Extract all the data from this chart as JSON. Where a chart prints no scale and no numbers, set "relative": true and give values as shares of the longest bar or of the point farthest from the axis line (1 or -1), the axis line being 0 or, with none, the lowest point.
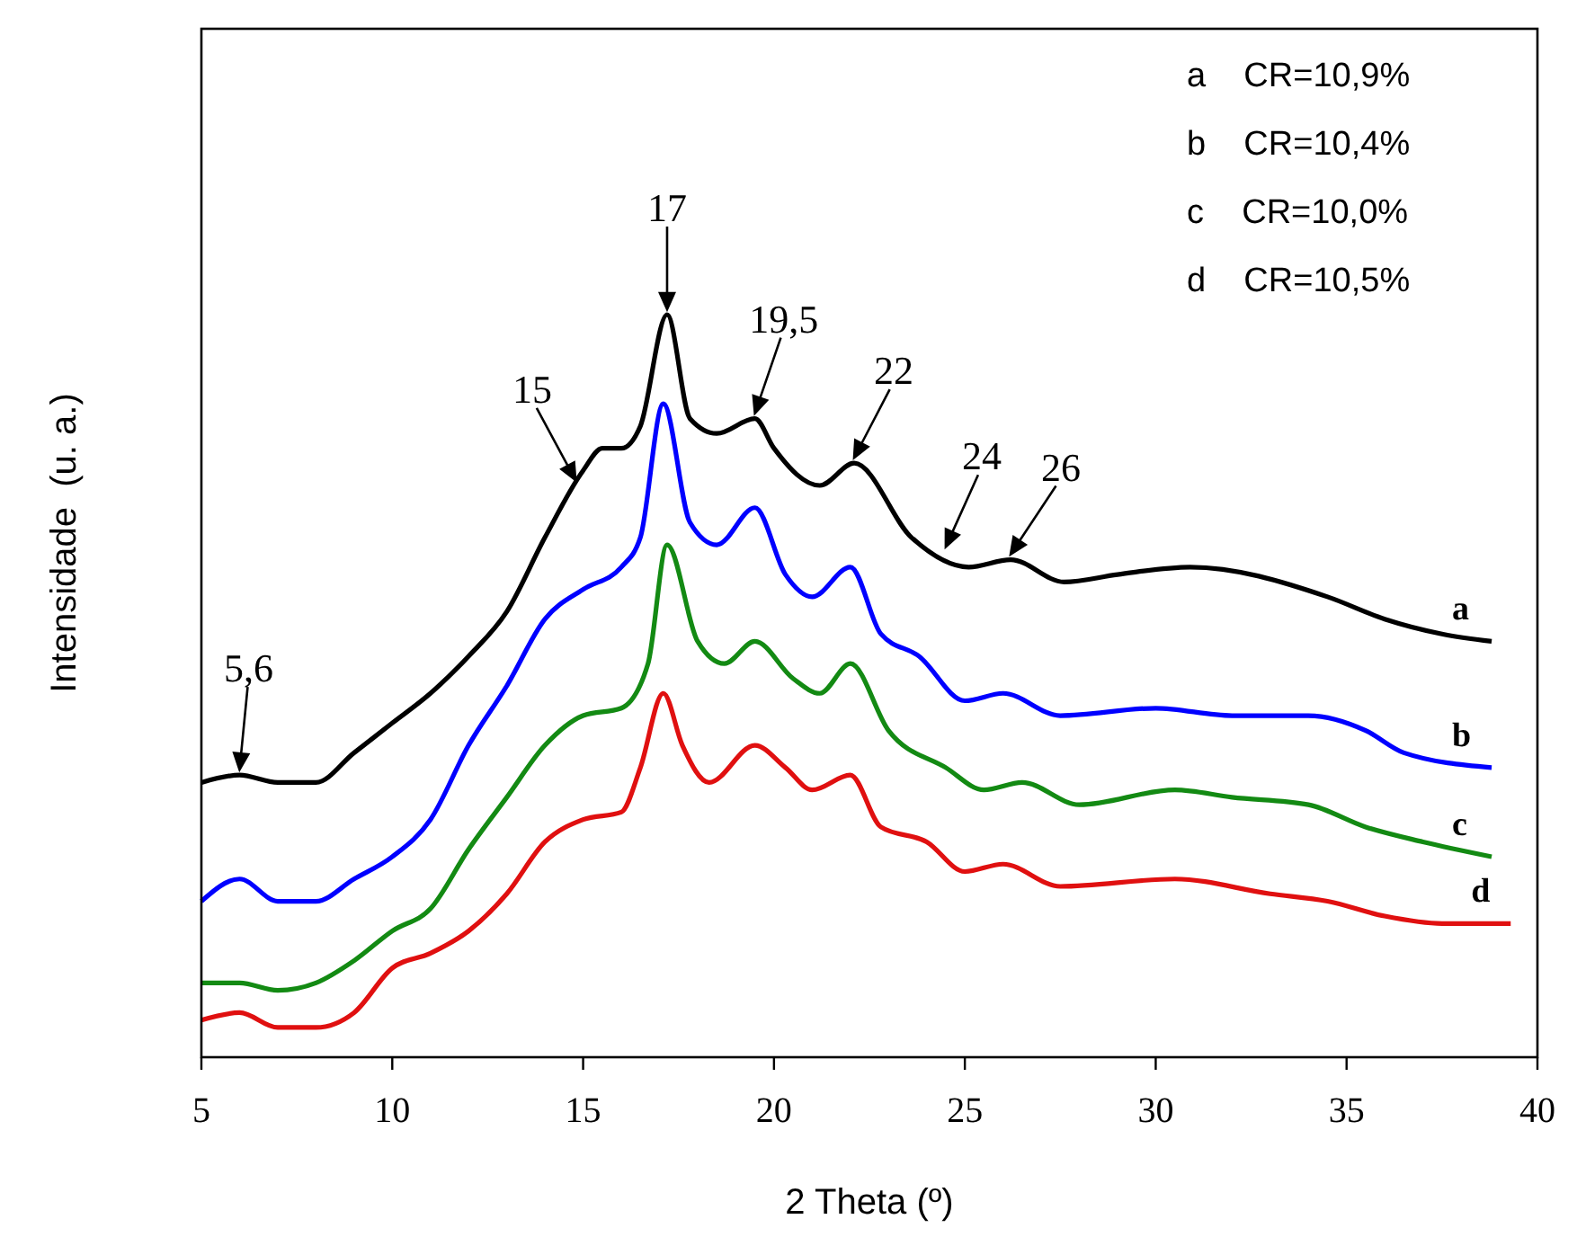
{
  "chart_data": {
    "type": "line",
    "relative": true,
    "xlabel": "2 Theta  (º)",
    "ylabel": "Intensidade  (u. a.)",
    "xlim": [
      5,
      40
    ],
    "xticks": [
      5,
      10,
      15,
      20,
      25,
      30,
      35,
      40
    ],
    "grid": false,
    "legend": false,
    "marker": "none",
    "line_style": "solid",
    "series": [
      {
        "name": "a",
        "color": "#000000",
        "x": [
          5,
          6,
          7,
          8,
          9,
          10,
          11,
          12,
          13,
          14,
          15,
          15.5,
          16,
          16.5,
          17.2,
          17.8,
          18.5,
          19.5,
          20,
          21.2,
          22.1,
          23.6,
          25.1,
          26.2,
          27.6,
          29,
          30.9,
          34.5,
          36,
          37.5,
          38.8
        ],
        "values": [
          0.37,
          0.38,
          0.37,
          0.37,
          0.41,
          0.45,
          0.49,
          0.54,
          0.6,
          0.7,
          0.79,
          0.82,
          0.82,
          0.85,
          1,
          0.86,
          0.84,
          0.86,
          0.82,
          0.77,
          0.8,
          0.7,
          0.66,
          0.67,
          0.64,
          0.65,
          0.66,
          0.62,
          0.59,
          0.57,
          0.56
        ]
      },
      {
        "name": "b",
        "color": "#0000ff",
        "x": [
          5,
          6,
          7,
          8,
          9,
          10,
          11,
          12,
          13,
          14,
          15,
          16,
          16.5,
          17.1,
          17.8,
          18.5,
          19.5,
          20.3,
          21,
          22,
          22.8,
          23.8,
          25,
          26,
          27.5,
          30,
          32,
          34,
          35.5,
          36.5,
          38.8
        ],
        "values": [
          0.21,
          0.24,
          0.21,
          0.21,
          0.24,
          0.27,
          0.32,
          0.42,
          0.5,
          0.59,
          0.63,
          0.66,
          0.7,
          0.88,
          0.72,
          0.69,
          0.74,
          0.65,
          0.62,
          0.66,
          0.57,
          0.54,
          0.48,
          0.49,
          0.46,
          0.47,
          0.46,
          0.46,
          0.44,
          0.41,
          0.39
        ]
      },
      {
        "name": "c",
        "color": "#138a13",
        "x": [
          5,
          6,
          7,
          8,
          9,
          10,
          11,
          12,
          13,
          14,
          15,
          16,
          16.7,
          17.2,
          18,
          18.7,
          19.5,
          20.5,
          21.2,
          22,
          23,
          24.5,
          25.5,
          26.5,
          28,
          30.5,
          32,
          34,
          35.5,
          37,
          38.8
        ],
        "values": [
          0.1,
          0.1,
          0.09,
          0.1,
          0.13,
          0.17,
          0.2,
          0.28,
          0.35,
          0.42,
          0.46,
          0.47,
          0.53,
          0.69,
          0.56,
          0.53,
          0.56,
          0.51,
          0.49,
          0.53,
          0.44,
          0.39,
          0.36,
          0.37,
          0.34,
          0.36,
          0.35,
          0.34,
          0.31,
          0.29,
          0.27
        ]
      },
      {
        "name": "d",
        "color": "#e01010",
        "x": [
          5,
          6,
          7,
          8,
          9,
          10,
          11,
          12,
          13,
          14,
          15,
          16,
          16.5,
          17.1,
          17.6,
          18.3,
          19.5,
          20.3,
          21,
          22,
          22.8,
          24,
          25,
          26,
          27.5,
          30.5,
          33,
          34.5,
          36,
          37.5,
          39.3
        ],
        "values": [
          0.05,
          0.06,
          0.04,
          0.04,
          0.06,
          0.12,
          0.14,
          0.17,
          0.22,
          0.29,
          0.32,
          0.33,
          0.39,
          0.49,
          0.42,
          0.37,
          0.42,
          0.39,
          0.36,
          0.38,
          0.31,
          0.29,
          0.25,
          0.26,
          0.23,
          0.24,
          0.22,
          0.21,
          0.19,
          0.18,
          0.18
        ]
      }
    ],
    "annotations": [
      {
        "text": "5,6",
        "x": 6,
        "y": 0.38
      },
      {
        "text": "15",
        "x": 14.8,
        "y": 0.77
      },
      {
        "text": "17",
        "x": 17.2,
        "y": 1
      },
      {
        "text": "19,5",
        "x": 19.5,
        "y": 0.86
      },
      {
        "text": "22",
        "x": 22.1,
        "y": 0.8
      },
      {
        "text": "24",
        "x": 24.5,
        "y": 0.68
      },
      {
        "text": "26",
        "x": 26.2,
        "y": 0.67
      },
      "a    CR=10,9%",
      "b    CR=10,4%",
      "c    CR=10,0%",
      "d    CR=10,5%"
    ]
  }
}
